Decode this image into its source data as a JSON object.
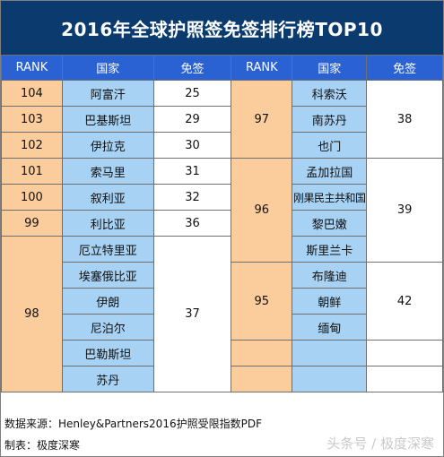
{
  "title": "2016年全球护照签免签排行榜TOP10",
  "headers": {
    "rank": "RANK",
    "country": "国家",
    "visa_free": "免签"
  },
  "left": {
    "groups": [
      {
        "rank": "104",
        "visa_free": "25",
        "countries": [
          "阿富汗"
        ]
      },
      {
        "rank": "103",
        "visa_free": "29",
        "countries": [
          "巴基斯坦"
        ]
      },
      {
        "rank": "102",
        "visa_free": "30",
        "countries": [
          "伊拉克"
        ]
      },
      {
        "rank": "101",
        "visa_free": "31",
        "countries": [
          "索马里"
        ]
      },
      {
        "rank": "100",
        "visa_free": "32",
        "countries": [
          "叙利亚"
        ]
      },
      {
        "rank": "99",
        "visa_free": "36",
        "countries": [
          "利比亚"
        ]
      },
      {
        "rank": "98",
        "visa_free": "37",
        "countries": [
          "厄立特里亚",
          "埃塞俄比亚",
          "伊朗",
          "尼泊尔",
          "巴勒斯坦",
          "苏丹"
        ]
      }
    ]
  },
  "right": {
    "groups": [
      {
        "rank": "97",
        "visa_free": "38",
        "countries": [
          "科索沃",
          "南苏丹",
          "也门"
        ]
      },
      {
        "rank": "96",
        "visa_free": "39",
        "countries": [
          "孟加拉国",
          "刚果民主共和国",
          "黎巴嫩",
          "斯里兰卡"
        ]
      },
      {
        "rank": "95",
        "visa_free": "42",
        "countries": [
          "布隆迪",
          "朝鲜",
          "缅甸"
        ]
      }
    ]
  },
  "footer": {
    "source": "数据来源：Henley&Partners2016护照受限指数PDF",
    "maker": "制表：极度深寒",
    "watermark": "头条号 / 极度深寒"
  }
}
